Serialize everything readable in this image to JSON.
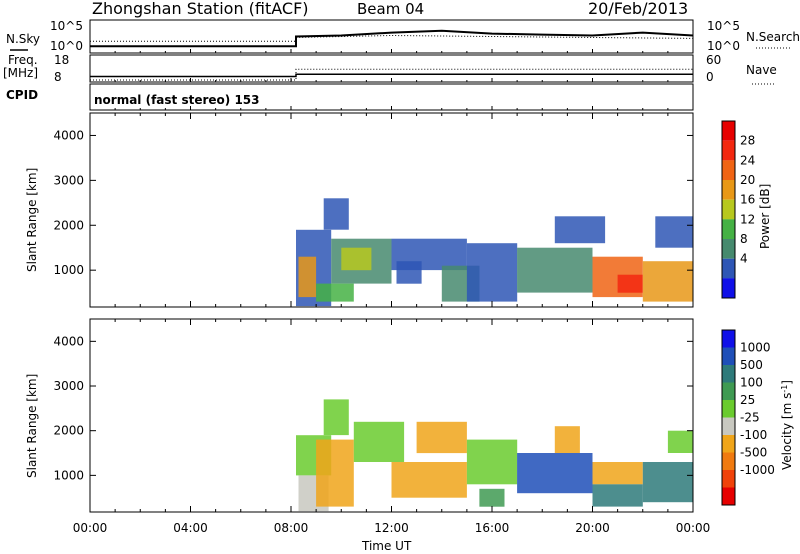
{
  "header": {
    "station": "Zhongshan Station (fitACF)",
    "beam": "Beam 04",
    "date": "20/Feb/2013"
  },
  "labels": {
    "nsky": "N.Sky",
    "nsearch": "N.Search",
    "freq_top": "Freq.",
    "freq_unit": "[MHz]",
    "cpid": "CPID",
    "nave": "Nave",
    "mode": "normal (fast stereo) 153",
    "pow10_5": "10^5",
    "pow10_0": "10^0"
  },
  "colors": {
    "power": [
      "#1010e8",
      "#2e56b5",
      "#468a6e",
      "#45b144",
      "#b7c81e",
      "#e89817",
      "#f06414",
      "#f32810",
      "#e60000"
    ],
    "velocity": [
      "#1010e8",
      "#1f4fb8",
      "#2e7a7a",
      "#3f9a52",
      "#6acb2e",
      "#c8c8c0",
      "#f0a51a",
      "#f07a10",
      "#f0420a",
      "#e60000"
    ]
  },
  "chart_data": [
    {
      "type": "line",
      "panel": "noise",
      "ylabel_left": "N.Sky",
      "ylabel_right": "N.Search",
      "yticks_left": [
        "10^5",
        "10^0"
      ],
      "yticks_right": [
        "10^5",
        "10^0"
      ],
      "series": [
        {
          "name": "N.Sky",
          "style": "solid",
          "x": [
            0,
            8.2,
            8.2,
            10,
            12,
            14,
            16,
            18,
            20,
            22,
            24
          ],
          "y_level": [
            0.5,
            0.5,
            1.5,
            1.6,
            1.9,
            2.1,
            1.8,
            1.7,
            1.6,
            1.9,
            1.6
          ]
        },
        {
          "name": "N.Search",
          "style": "dotted",
          "x": [
            0,
            8.2,
            8.2,
            12,
            16,
            20,
            24
          ],
          "y_level": [
            1.0,
            1.0,
            1.4,
            1.6,
            1.5,
            1.4,
            1.3
          ]
        }
      ]
    },
    {
      "type": "line",
      "panel": "frequency",
      "ylabel_left": "Freq. [MHz]",
      "ylabel_right": "Nave",
      "yticks_left": [
        18,
        8
      ],
      "yticks_right": [
        60,
        0
      ],
      "series": [
        {
          "name": "Freq.",
          "style": "solid",
          "x": [
            0,
            8.2,
            8.2,
            24
          ],
          "y": [
            9.5,
            9.5,
            10.5,
            10.5
          ]
        },
        {
          "name": "Nave",
          "style": "dotted",
          "x": [
            0,
            8.2,
            8.2,
            24
          ],
          "y": [
            0,
            0,
            28,
            28
          ]
        }
      ]
    },
    {
      "type": "heatmap",
      "panel": "power",
      "ylabel": "Slant Range [km]",
      "xlim": [
        0,
        24
      ],
      "ylim": [
        180,
        4500
      ],
      "yticks": [
        1000,
        2000,
        3000,
        4000
      ],
      "colorbar_label": "Power [dB]",
      "colorbar_ticks": [
        4,
        8,
        12,
        16,
        20,
        24,
        28
      ],
      "colorbar_range": [
        0,
        32
      ],
      "regions": [
        {
          "x": [
            8.2,
            9.6
          ],
          "y": [
            200,
            1900
          ],
          "value": 6
        },
        {
          "x": [
            9.6,
            12.0
          ],
          "y": [
            700,
            1700
          ],
          "value": 8
        },
        {
          "x": [
            8.3,
            9.0
          ],
          "y": [
            400,
            1300
          ],
          "value": 18
        },
        {
          "x": [
            9.0,
            10.5
          ],
          "y": [
            300,
            700
          ],
          "value": 14
        },
        {
          "x": [
            9.3,
            10.3
          ],
          "y": [
            1900,
            2600
          ],
          "value": 6
        },
        {
          "x": [
            10.0,
            11.2
          ],
          "y": [
            1000,
            1500
          ],
          "value": 16
        },
        {
          "x": [
            12.0,
            15.0
          ],
          "y": [
            1000,
            1700
          ],
          "value": 6
        },
        {
          "x": [
            12.2,
            13.2
          ],
          "y": [
            700,
            1200
          ],
          "value": 5
        },
        {
          "x": [
            14.0,
            15.5
          ],
          "y": [
            300,
            1100
          ],
          "value": 8
        },
        {
          "x": [
            15.0,
            17.0
          ],
          "y": [
            300,
            1600
          ],
          "value": 6
        },
        {
          "x": [
            17.0,
            20.0
          ],
          "y": [
            500,
            1500
          ],
          "value": 10
        },
        {
          "x": [
            18.5,
            20.5
          ],
          "y": [
            1600,
            2200
          ],
          "value": 6
        },
        {
          "x": [
            20.0,
            22.0
          ],
          "y": [
            400,
            1300
          ],
          "value": 22
        },
        {
          "x": [
            21.0,
            22.0
          ],
          "y": [
            500,
            900
          ],
          "value": 28
        },
        {
          "x": [
            22.0,
            24.0
          ],
          "y": [
            300,
            1200
          ],
          "value": 18
        },
        {
          "x": [
            22.5,
            24.0
          ],
          "y": [
            1500,
            2200
          ],
          "value": 6
        }
      ]
    },
    {
      "type": "heatmap",
      "panel": "velocity",
      "ylabel": "Slant Range [km]",
      "xlabel": "Time UT",
      "xlim": [
        0,
        24
      ],
      "ylim": [
        180,
        4500
      ],
      "yticks": [
        1000,
        2000,
        3000,
        4000
      ],
      "xticks": [
        "00:00",
        "04:00",
        "08:00",
        "12:00",
        "16:00",
        "20:00",
        "00:00"
      ],
      "colorbar_label": "Velocity [m s^-1]",
      "colorbar_ticks": [
        1000,
        500,
        100,
        25,
        -25,
        -100,
        -500,
        -1000
      ],
      "regions": [
        {
          "x": [
            8.2,
            9.6
          ],
          "y": [
            1000,
            1900
          ],
          "value": 0
        },
        {
          "x": [
            8.3,
            9.5
          ],
          "y": [
            200,
            1000
          ],
          "value": -60
        },
        {
          "x": [
            9.0,
            10.5
          ],
          "y": [
            300,
            1800
          ],
          "value": -300
        },
        {
          "x": [
            9.3,
            10.3
          ],
          "y": [
            1900,
            2700
          ],
          "value": 0
        },
        {
          "x": [
            10.5,
            12.5
          ],
          "y": [
            1300,
            2200
          ],
          "value": 0
        },
        {
          "x": [
            12.0,
            15.0
          ],
          "y": [
            500,
            1300
          ],
          "value": -300
        },
        {
          "x": [
            13.0,
            15.0
          ],
          "y": [
            1500,
            2200
          ],
          "value": -100
        },
        {
          "x": [
            15.0,
            17.0
          ],
          "y": [
            800,
            1800
          ],
          "value": 0
        },
        {
          "x": [
            15.5,
            16.5
          ],
          "y": [
            300,
            700
          ],
          "value": 50
        },
        {
          "x": [
            17.0,
            20.0
          ],
          "y": [
            600,
            1500
          ],
          "value": 700
        },
        {
          "x": [
            18.5,
            19.5
          ],
          "y": [
            1500,
            2100
          ],
          "value": -300
        },
        {
          "x": [
            20.0,
            22.0
          ],
          "y": [
            800,
            1300
          ],
          "value": -300
        },
        {
          "x": [
            20.0,
            22.0
          ],
          "y": [
            300,
            800
          ],
          "value": 200
        },
        {
          "x": [
            22.0,
            24.0
          ],
          "y": [
            400,
            1300
          ],
          "value": 200
        },
        {
          "x": [
            23.0,
            24.0
          ],
          "y": [
            1500,
            2000
          ],
          "value": 0
        }
      ]
    }
  ]
}
